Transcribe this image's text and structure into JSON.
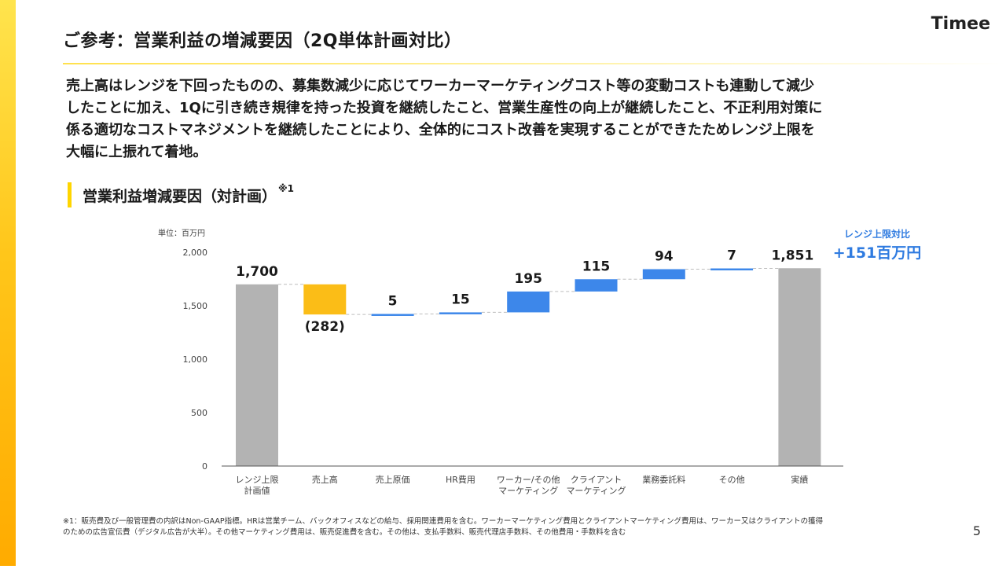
{
  "slide": {
    "title": "ご参考：営業利益の増減要因（2Q単体計画対比）",
    "logo": "Timee",
    "page_number": "5",
    "body_lines": [
      "売上高はレンジを下回ったものの、募集数減少に応じてワーカーマーケティングコスト等の変動コストも連動して減少",
      "したことに加え、1Qに引き続き規律を持った投資を継続したこと、営業生産性の向上が継続したこと、不正利用対策に",
      "係る適切なコストマネジメントを継続したことにより、全体的にコスト改善を実現することができたためレンジ上限を",
      "大幅に上振れて着地。"
    ],
    "section_heading": "営業利益増減要因（対計画）",
    "section_heading_note": "※1",
    "footnote_lines": [
      "※1：販売費及び一般管理費の内訳はNon-GAAP指標。HRは営業チーム、バックオフィスなどの給与、採用関連費用を含む。ワーカーマーケティング費用とクライアントマーケティング費用は、ワーカー又はクライアントの獲得",
      "のための広告宣伝費（デジタル広告が大半）。その他マーケティング費用は、販売促進費を含む。その他は、支払手数料、販売代理店手数料、その他費用・手数料を含む"
    ]
  },
  "chart_data": {
    "type": "bar",
    "subtype": "waterfall",
    "unit_label": "単位：百万円",
    "categories": [
      [
        "レンジ上限",
        "計画値"
      ],
      [
        "売上高"
      ],
      [
        "売上原価"
      ],
      [
        "HR費用"
      ],
      [
        "ワーカー/その他",
        "マーケティング"
      ],
      [
        "クライアント",
        "マーケティング"
      ],
      [
        "業務委託料"
      ],
      [
        "その他"
      ],
      [
        "実績"
      ]
    ],
    "values": [
      1700,
      -282,
      5,
      15,
      195,
      115,
      94,
      7,
      1851
    ],
    "bar_kinds": [
      "total",
      "decrease",
      "increase",
      "increase",
      "increase",
      "increase",
      "increase",
      "increase",
      "total"
    ],
    "value_labels": [
      "1,700",
      "(282)",
      "5",
      "15",
      "195",
      "115",
      "94",
      "7",
      "1,851"
    ],
    "ylim": [
      0,
      2000
    ],
    "yticks": [
      0,
      500,
      1000,
      1500,
      2000
    ],
    "ytick_labels": [
      "0",
      "500",
      "1,000",
      "1,500",
      "2,000"
    ],
    "callout": {
      "label": "レンジ上限対比",
      "value": "+151百万円"
    },
    "colors": {
      "total": "#b3b3b3",
      "decrease": "#fbbd17",
      "increase": "#3d87ea",
      "callout": "#2f7be0",
      "connector": "#bdbdbd",
      "axis": "#555555",
      "tick_text": "#444444"
    }
  }
}
